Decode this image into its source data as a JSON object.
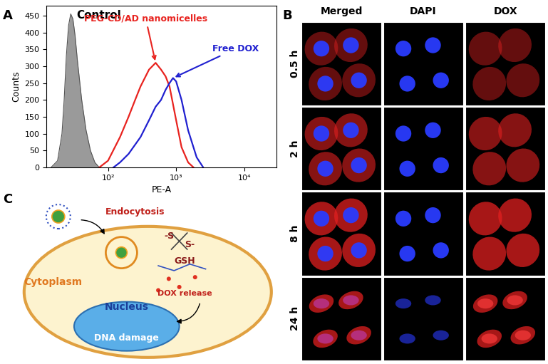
{
  "chart_data": {
    "type": "line",
    "log": "x",
    "xlabel": "PE-A",
    "ylabel": "Counts",
    "xlim": [
      -40,
      30000
    ],
    "xticks": [
      {
        "value": 100,
        "label": "10²"
      },
      {
        "value": 1000,
        "label": "10³"
      },
      {
        "value": 10000,
        "label": "10⁴"
      }
    ],
    "ylim": [
      0,
      480
    ],
    "yticks": [
      0,
      50,
      100,
      150,
      200,
      250,
      300,
      350,
      400,
      450
    ],
    "series": [
      {
        "name": "Control",
        "color": "#9a9a9a",
        "type": "area",
        "x": [
          -30,
          -15,
          -5,
          0,
          5,
          10,
          15,
          20,
          25,
          30,
          40,
          50,
          60,
          70,
          80
        ],
        "values": [
          0,
          20,
          100,
          200,
          330,
          420,
          455,
          440,
          390,
          320,
          200,
          110,
          50,
          15,
          0
        ]
      },
      {
        "name": "PEG-CD/AD nanomicelles",
        "color": "#e8231f",
        "type": "line",
        "x": [
          80,
          100,
          150,
          200,
          250,
          300,
          400,
          500,
          600,
          700,
          800,
          1000,
          1200,
          1500,
          1800
        ],
        "values": [
          0,
          20,
          90,
          150,
          200,
          240,
          290,
          310,
          290,
          270,
          240,
          140,
          60,
          15,
          0
        ]
      },
      {
        "name": "Free DOX",
        "color": "#2020d0",
        "type": "line",
        "x": [
          120,
          150,
          200,
          300,
          400,
          500,
          600,
          700,
          800,
          900,
          1000,
          1200,
          1500,
          2000,
          2500
        ],
        "values": [
          0,
          15,
          40,
          90,
          140,
          180,
          200,
          230,
          250,
          265,
          255,
          200,
          110,
          30,
          0
        ]
      }
    ]
  },
  "panel_labels": [
    "A",
    "B",
    "C"
  ],
  "microscopy": {
    "columns": [
      "Merged",
      "DAPI",
      "DOX"
    ],
    "rows": [
      "0.5 h",
      "2 h",
      "8 h",
      "24 h"
    ]
  },
  "diagram": {
    "endocytosis": "Endocytosis",
    "cytoplasm": "Cytoplasm",
    "nucleus": "Nucleus",
    "dna": "DNA damage",
    "release": "DOX release",
    "gsh": "GSH",
    "bond_left": "-S",
    "bond_right": "S-"
  }
}
